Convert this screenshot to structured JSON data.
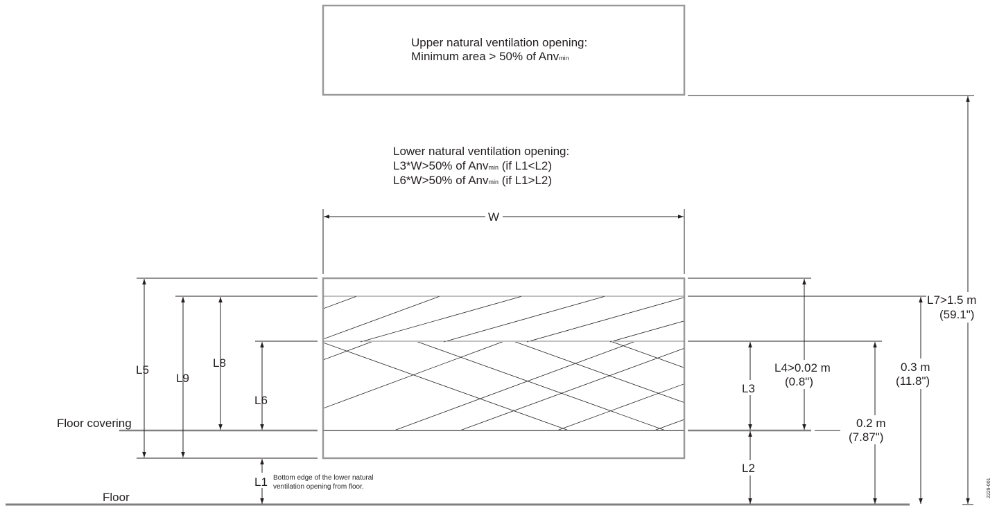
{
  "upper_opening": {
    "title": "Upper natural ventilation opening:",
    "line2_prefix": "Minimum area > 50% of Anv",
    "line2_sub": "min"
  },
  "lower_opening": {
    "title": "Lower natural ventilation opening:",
    "line2_prefix": "L3*W>50% of Anv",
    "line2_sub": "min",
    "line2_suffix": " (if L1<L2)",
    "line3_prefix": "L6*W>50% of Anv",
    "line3_sub": "min",
    "line3_suffix": " (if L1>L2)"
  },
  "labels": {
    "width": "W",
    "l1": "L1",
    "l1_note_line1": "Bottom edge of the lower natural",
    "l1_note_line2": "ventilation opening from floor.",
    "l2": "L2",
    "l3": "L3",
    "l4": "L4>0.02 m",
    "l4_imperial": "(0.8\")",
    "l5": "L5",
    "l6": "L6",
    "l7": "L7>1.5 m",
    "l7_imperial": "(59.1\")",
    "l8": "L8",
    "l9": "L9",
    "dim_03": "0.3 m",
    "dim_03_imperial": "(11.8\")",
    "dim_02": "0.2 m",
    "dim_02_imperial": "(7.87\")",
    "floor_covering": "Floor covering",
    "floor": "Floor",
    "figure_id": "2229-001"
  }
}
